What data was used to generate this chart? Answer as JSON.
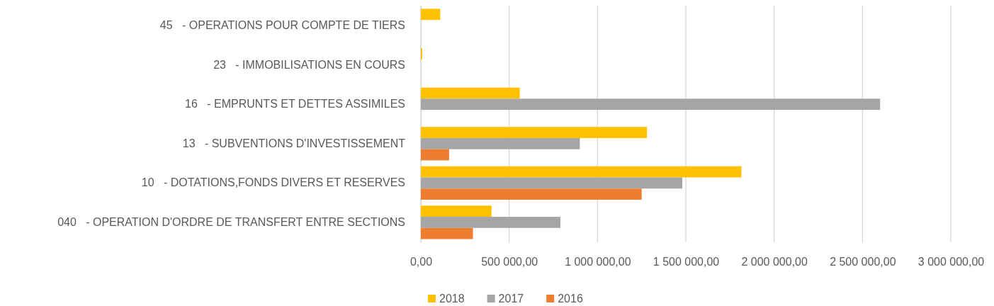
{
  "chart_data": {
    "type": "bar",
    "orientation": "horizontal",
    "categories": [
      "45   - OPERATIONS POUR COMPTE DE TIERS",
      "23   - IMMOBILISATIONS EN COURS",
      "16   - EMPRUNTS ET DETTES ASSIMILES",
      "13   - SUBVENTIONS D'INVESTISSEMENT",
      "10   - DOTATIONS,FONDS DIVERS ET RESERVES",
      "040   - OPERATION D'ORDRE DE TRANSFERT ENTRE SECTIONS"
    ],
    "series": [
      {
        "name": "2018",
        "color": "#ffc000",
        "values": [
          110000,
          8000,
          560000,
          1280000,
          1815000,
          400000
        ]
      },
      {
        "name": "2017",
        "color": "#a5a5a5",
        "values": [
          null,
          null,
          2600000,
          900000,
          1480000,
          790000
        ]
      },
      {
        "name": "2016",
        "color": "#ed7d31",
        "values": [
          null,
          null,
          null,
          160000,
          1250000,
          295000
        ]
      }
    ],
    "xlim": [
      0,
      3000000
    ],
    "xticks": [
      {
        "value": 0,
        "label": "0,00"
      },
      {
        "value": 500000,
        "label": "500 000,00"
      },
      {
        "value": 1000000,
        "label": "1 000 000,00"
      },
      {
        "value": 1500000,
        "label": "1 500 000,00"
      },
      {
        "value": 2000000,
        "label": "2 000 000,00"
      },
      {
        "value": 2500000,
        "label": "2 500 000,00"
      },
      {
        "value": 3000000,
        "label": "3 000 000,00"
      }
    ],
    "grid": "x",
    "legend": "bottom"
  }
}
